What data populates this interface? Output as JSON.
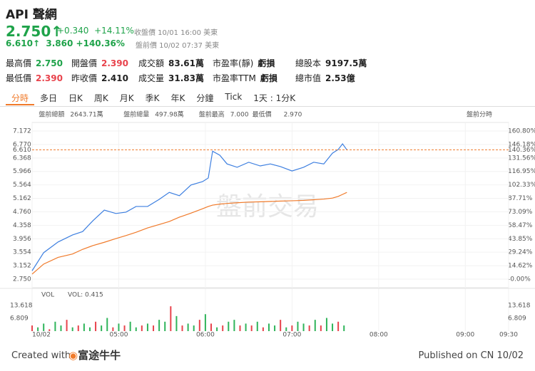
{
  "header": {
    "symbol": "API 聲網",
    "price": "2.750",
    "change": "+0.340",
    "change_pct": "+14.11%",
    "close_note": "收盤價 10/01 16:00 美東",
    "pre_price": "6.610",
    "pre_change": "3.860",
    "pre_change_pct": "+140.36%",
    "pre_note": "盤前價 10/02 07:37 美東"
  },
  "stats": [
    {
      "label": "最高價",
      "value": "2.750"
    },
    {
      "label": "開盤價",
      "value": "2.390"
    },
    {
      "label": "成交額",
      "value": "83.61萬"
    },
    {
      "label": "市盈率(靜)",
      "value": "虧損"
    },
    {
      "label": "總股本",
      "value": "9197.5萬"
    },
    {
      "label": "最低價",
      "value": "2.390"
    },
    {
      "label": "昨收價",
      "value": "2.410"
    },
    {
      "label": "成交量",
      "value": "31.83萬"
    },
    {
      "label": "市盈率TTM",
      "value": "虧損"
    },
    {
      "label": "總市值",
      "value": "2.53億"
    }
  ],
  "tabs": [
    "分時",
    "多日",
    "日K",
    "周K",
    "月K",
    "季K",
    "年K",
    "分鐘",
    "Tick",
    "1天 : 1分K"
  ],
  "info": [
    "盤前總額",
    "2643.71萬",
    "盤前總量",
    "497.98萬",
    "盤前最高",
    "7.000",
    "最低價",
    "2.970"
  ],
  "mode": "盤前分時",
  "watermark": "盤前交易",
  "footer": {
    "created": "Created with",
    "brand": "富途牛牛",
    "published": "Published on CN 10/02"
  },
  "chart_data": {
    "type": "line",
    "x": [
      0,
      8,
      18,
      28,
      35,
      42,
      50,
      58,
      65,
      72,
      80,
      88,
      95,
      102,
      110,
      118,
      122,
      125,
      130,
      135,
      142,
      150,
      158,
      165,
      172,
      180,
      188,
      195,
      202,
      208,
      212,
      215,
      218
    ],
    "series": [
      {
        "color": "#3d7fe0",
        "values": [
          3.0,
          3.54,
          3.86,
          4.07,
          4.17,
          4.49,
          4.81,
          4.71,
          4.75,
          4.92,
          4.92,
          5.13,
          5.34,
          5.24,
          5.56,
          5.66,
          5.77,
          6.57,
          6.45,
          6.19,
          6.09,
          6.24,
          6.13,
          6.19,
          6.11,
          5.98,
          6.09,
          6.24,
          6.19,
          6.51,
          6.62,
          6.79,
          6.61
        ]
      },
      {
        "color": "#f07a2a",
        "values": [
          2.9,
          3.2,
          3.4,
          3.5,
          3.64,
          3.75,
          3.85,
          3.96,
          4.05,
          4.15,
          4.28,
          4.38,
          4.47,
          4.6,
          4.72,
          4.85,
          4.92,
          4.96,
          4.99,
          5.01,
          5.03,
          5.05,
          5.06,
          5.07,
          5.08,
          5.09,
          5.1,
          5.12,
          5.14,
          5.17,
          5.22,
          5.28,
          5.34
        ]
      }
    ],
    "xlim": [
      0,
      330
    ],
    "xticks": [
      {
        "value": 0,
        "label": "10/02"
      },
      {
        "value": 60,
        "label": "05:00"
      },
      {
        "value": 120,
        "label": "06:00"
      },
      {
        "value": 180,
        "label": "07:00"
      },
      {
        "value": 240,
        "label": "08:00"
      },
      {
        "value": 300,
        "label": "09:00"
      },
      {
        "value": 330,
        "label": "09:30"
      }
    ],
    "ylim": [
      2.75,
      7.172
    ],
    "yticks": [
      {
        "value": 2.75,
        "label": "2.750"
      },
      3.152,
      3.554,
      3.956,
      4.358,
      {
        "value": 4.76,
        "label": "4.760"
      },
      5.162,
      5.564,
      5.966,
      6.368,
      {
        "value": 6.77,
        "label": "6.770"
      },
      7.172
    ],
    "y2lim": [
      0,
      160.8
    ],
    "y2ticks": [
      {
        "value": 0,
        "label": "-0.00%"
      },
      {
        "value": 14.62,
        "label": "14.62%"
      },
      {
        "value": 29.24,
        "label": "29.24%"
      },
      {
        "value": 43.85,
        "label": "43.85%"
      },
      {
        "value": 58.47,
        "label": "58.47%"
      },
      {
        "value": 73.09,
        "label": "73.09%"
      },
      {
        "value": 87.71,
        "label": "87.71%"
      },
      {
        "value": 102.33,
        "label": "102.33%"
      },
      {
        "value": 116.95,
        "label": "116.95%"
      },
      {
        "value": 131.56,
        "label": "131.56%"
      },
      {
        "value": 146.18,
        "label": "146.18%"
      },
      {
        "value": 160.8,
        "label": "160.80%"
      }
    ],
    "last": {
      "value": 6.61,
      "label": "6.610",
      "pct": {
        "value": 140.36,
        "label": "140.36%"
      }
    },
    "volume": {
      "title": "VOL",
      "legend": "VOL: 0.415",
      "x": [
        0,
        4,
        8,
        12,
        16,
        20,
        24,
        28,
        32,
        36,
        40,
        44,
        48,
        52,
        56,
        60,
        64,
        68,
        72,
        76,
        80,
        84,
        88,
        92,
        96,
        100,
        104,
        108,
        112,
        116,
        120,
        124,
        128,
        132,
        136,
        140,
        144,
        148,
        152,
        156,
        160,
        164,
        168,
        172,
        176,
        180,
        184,
        188,
        192,
        196,
        200,
        204,
        208,
        212,
        216
      ],
      "values": [
        3,
        2,
        4,
        1,
        5,
        3,
        6,
        2,
        3,
        4,
        2,
        5,
        3,
        7,
        2,
        4,
        3,
        5,
        2,
        3,
        4,
        3,
        6,
        5,
        13.2,
        8,
        3,
        4,
        3,
        6,
        9,
        4,
        2,
        3,
        5,
        6,
        3,
        4,
        3,
        5,
        2,
        4,
        3,
        6,
        2,
        3,
        5,
        4,
        3,
        6,
        3,
        7,
        4,
        5,
        3
      ],
      "colors": [
        "#e8434c",
        "#2fb45a",
        "#2fb45a",
        "#e8434c",
        "#2fb45a",
        "#2fb45a",
        "#e8434c",
        "#2fb45a",
        "#e8434c",
        "#2fb45a",
        "#2fb45a",
        "#e8434c",
        "#2fb45a",
        "#2fb45a",
        "#e8434c",
        "#2fb45a",
        "#e8434c",
        "#2fb45a",
        "#2fb45a",
        "#e8434c",
        "#2fb45a",
        "#e8434c",
        "#2fb45a",
        "#2fb45a",
        "#e8434c",
        "#2fb45a",
        "#e8434c",
        "#2fb45a",
        "#2fb45a",
        "#e8434c",
        "#2fb45a",
        "#e8434c",
        "#2fb45a",
        "#e8434c",
        "#2fb45a",
        "#2fb45a",
        "#e8434c",
        "#2fb45a",
        "#e8434c",
        "#2fb45a",
        "#e8434c",
        "#2fb45a",
        "#2fb45a",
        "#e8434c",
        "#2fb45a",
        "#e8434c",
        "#2fb45a",
        "#2fb45a",
        "#e8434c",
        "#2fb45a",
        "#e8434c",
        "#2fb45a",
        "#2fb45a",
        "#e8434c",
        "#2fb45a"
      ],
      "ylim": [
        0,
        13.618
      ],
      "yticks": [
        {
          "value": 13.618,
          "label": "13.618"
        },
        {
          "value": 6.809,
          "label": "6.809"
        }
      ]
    }
  }
}
